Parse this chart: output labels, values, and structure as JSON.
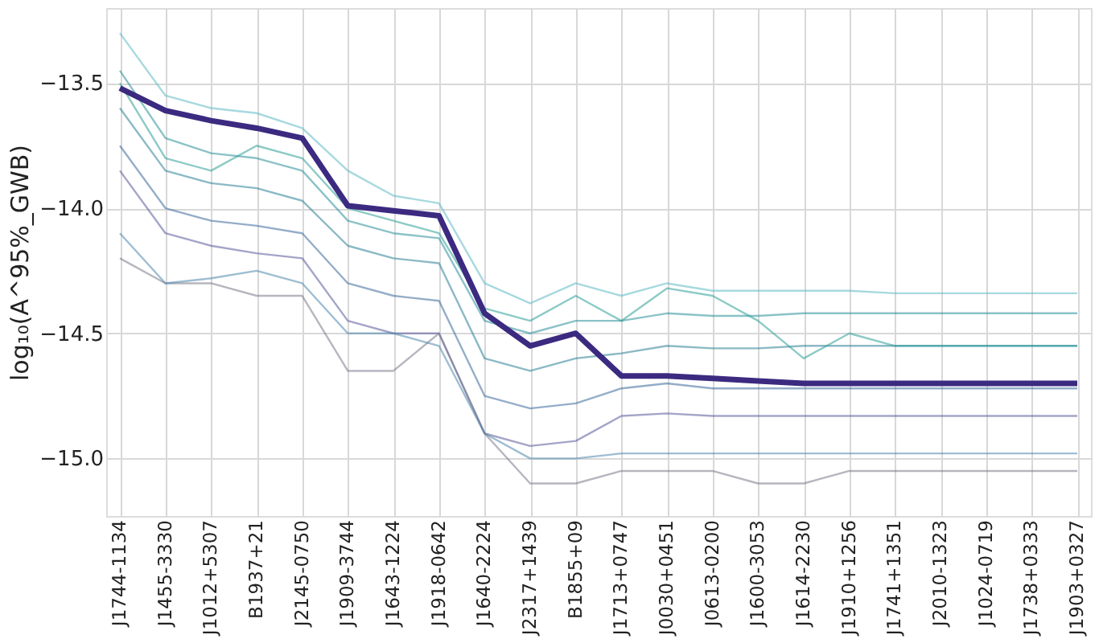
{
  "chart_data": {
    "type": "line",
    "ylabel": "log₁₀(A^95%_GWB)",
    "categories": [
      "J1744-1134",
      "J1455-3330",
      "J1012+5307",
      "B1937+21",
      "J2145-0750",
      "J1909-3744",
      "J1643-1224",
      "J1918-0642",
      "J1640-2224",
      "J2317+1439",
      "B1855+09",
      "J1713+0747",
      "J0030+0451",
      "J0613-0200",
      "J1600-3053",
      "J1614-2230",
      "J1910+1256",
      "J1741+1351",
      "J2010-1323",
      "J1024-0719",
      "J1738+0333",
      "J1903+0327"
    ],
    "ylim": [
      -15.23,
      -13.2
    ],
    "yticks": [
      {
        "value": -15.0,
        "label": "−15.0"
      },
      {
        "value": -14.5,
        "label": "−14.5"
      },
      {
        "value": -14.0,
        "label": "−14.0"
      },
      {
        "value": -13.5,
        "label": "−13.5"
      }
    ],
    "grid": true,
    "legend": false,
    "series": [
      {
        "color": "#3b2a80",
        "values": [
          -13.52,
          -13.61,
          -13.65,
          -13.68,
          -13.72,
          -13.99,
          -14.01,
          -14.03,
          -14.42,
          -14.55,
          -14.5,
          -14.67,
          -14.67,
          -14.68,
          -14.69,
          -14.7,
          -14.7,
          -14.7,
          -14.7,
          -14.7,
          -14.7,
          -14.7
        ]
      },
      {
        "color": "#5fb9c4",
        "values": [
          -13.3,
          -13.55,
          -13.6,
          -13.62,
          -13.68,
          -13.85,
          -13.95,
          -13.98,
          -14.3,
          -14.38,
          -14.3,
          -14.35,
          -14.3,
          -14.33,
          -14.33,
          -14.33,
          -14.33,
          -14.34,
          -14.34,
          -14.34,
          -14.34,
          -14.34
        ]
      },
      {
        "color": "#2a8f9a",
        "values": [
          -13.45,
          -13.72,
          -13.78,
          -13.8,
          -13.85,
          -14.05,
          -14.1,
          -14.12,
          -14.45,
          -14.5,
          -14.45,
          -14.45,
          -14.42,
          -14.43,
          -14.43,
          -14.42,
          -14.42,
          -14.42,
          -14.42,
          -14.42,
          -14.42,
          -14.42
        ]
      },
      {
        "color": "#2c7f95",
        "values": [
          -13.6,
          -13.85,
          -13.9,
          -13.92,
          -13.97,
          -14.15,
          -14.2,
          -14.22,
          -14.6,
          -14.65,
          -14.6,
          -14.58,
          -14.55,
          -14.56,
          -14.56,
          -14.55,
          -14.55,
          -14.55,
          -14.55,
          -14.55,
          -14.55,
          -14.55
        ]
      },
      {
        "color": "#2e9e98",
        "values": [
          -13.5,
          -13.8,
          -13.85,
          -13.75,
          -13.8,
          -14.0,
          -14.05,
          -14.1,
          -14.4,
          -14.45,
          -14.35,
          -14.45,
          -14.32,
          -14.35,
          -14.45,
          -14.6,
          -14.5,
          -14.55,
          -14.55,
          -14.55,
          -14.55,
          -14.55
        ]
      },
      {
        "color": "#3d6a9a",
        "values": [
          -13.75,
          -14.0,
          -14.05,
          -14.07,
          -14.1,
          -14.3,
          -14.35,
          -14.37,
          -14.75,
          -14.8,
          -14.78,
          -14.72,
          -14.7,
          -14.72,
          -14.72,
          -14.72,
          -14.72,
          -14.72,
          -14.72,
          -14.72,
          -14.72,
          -14.72
        ]
      },
      {
        "color": "#5a5a9a",
        "values": [
          -13.85,
          -14.1,
          -14.15,
          -14.18,
          -14.2,
          -14.45,
          -14.5,
          -14.5,
          -14.9,
          -14.95,
          -14.93,
          -14.83,
          -14.82,
          -14.83,
          -14.83,
          -14.83,
          -14.83,
          -14.83,
          -14.83,
          -14.83,
          -14.83,
          -14.83
        ]
      },
      {
        "color": "#7a7a8a",
        "values": [
          -14.2,
          -14.3,
          -14.3,
          -14.35,
          -14.35,
          -14.65,
          -14.65,
          -14.5,
          -14.9,
          -15.1,
          -15.1,
          -15.05,
          -15.05,
          -15.05,
          -15.1,
          -15.1,
          -15.05,
          -15.05,
          -15.05,
          -15.05,
          -15.05,
          -15.05
        ]
      },
      {
        "color": "#4f86ad",
        "values": [
          -14.1,
          -14.3,
          -14.28,
          -14.25,
          -14.3,
          -14.5,
          -14.5,
          -14.55,
          -14.9,
          -15.0,
          -15.0,
          -14.98,
          -14.98,
          -14.98,
          -14.98,
          -14.98,
          -14.98,
          -14.98,
          -14.98,
          -14.98,
          -14.98,
          -14.98
        ]
      }
    ]
  }
}
